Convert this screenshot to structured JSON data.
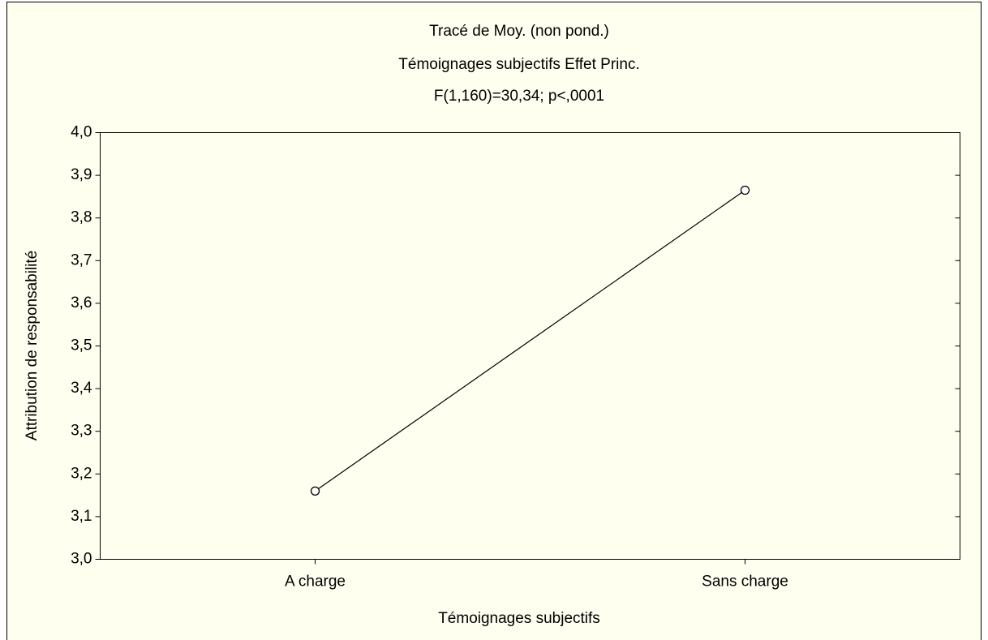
{
  "chart_data": {
    "type": "line",
    "title": "Tracé de Moy. (non pond.)",
    "subtitle": "Témoignages subjectifs Effet Princ.",
    "annotation": "F(1,160)=30,34; p<,0001",
    "x_label": "Témoignages subjectifs",
    "y_label": "Attribution de responsabilité",
    "categories": [
      "A charge",
      "Sans charge"
    ],
    "values": [
      3.16,
      3.865
    ],
    "color": "#000000",
    "ylim": [
      3.0,
      4.0
    ],
    "yticks": [
      {
        "value": 3.0,
        "label": "3,0"
      },
      {
        "value": 3.1,
        "label": "3,1"
      },
      {
        "value": 3.2,
        "label": "3,2"
      },
      {
        "value": 3.3,
        "label": "3,3"
      },
      {
        "value": 3.4,
        "label": "3,4"
      },
      {
        "value": 3.5,
        "label": "3,5"
      },
      {
        "value": 3.6,
        "label": "3,6"
      },
      {
        "value": 3.7,
        "label": "3,7"
      },
      {
        "value": 3.8,
        "label": "3,8"
      },
      {
        "value": 3.9,
        "label": "3,9"
      },
      {
        "value": 4.0,
        "label": "4,0"
      }
    ],
    "grid": false
  }
}
